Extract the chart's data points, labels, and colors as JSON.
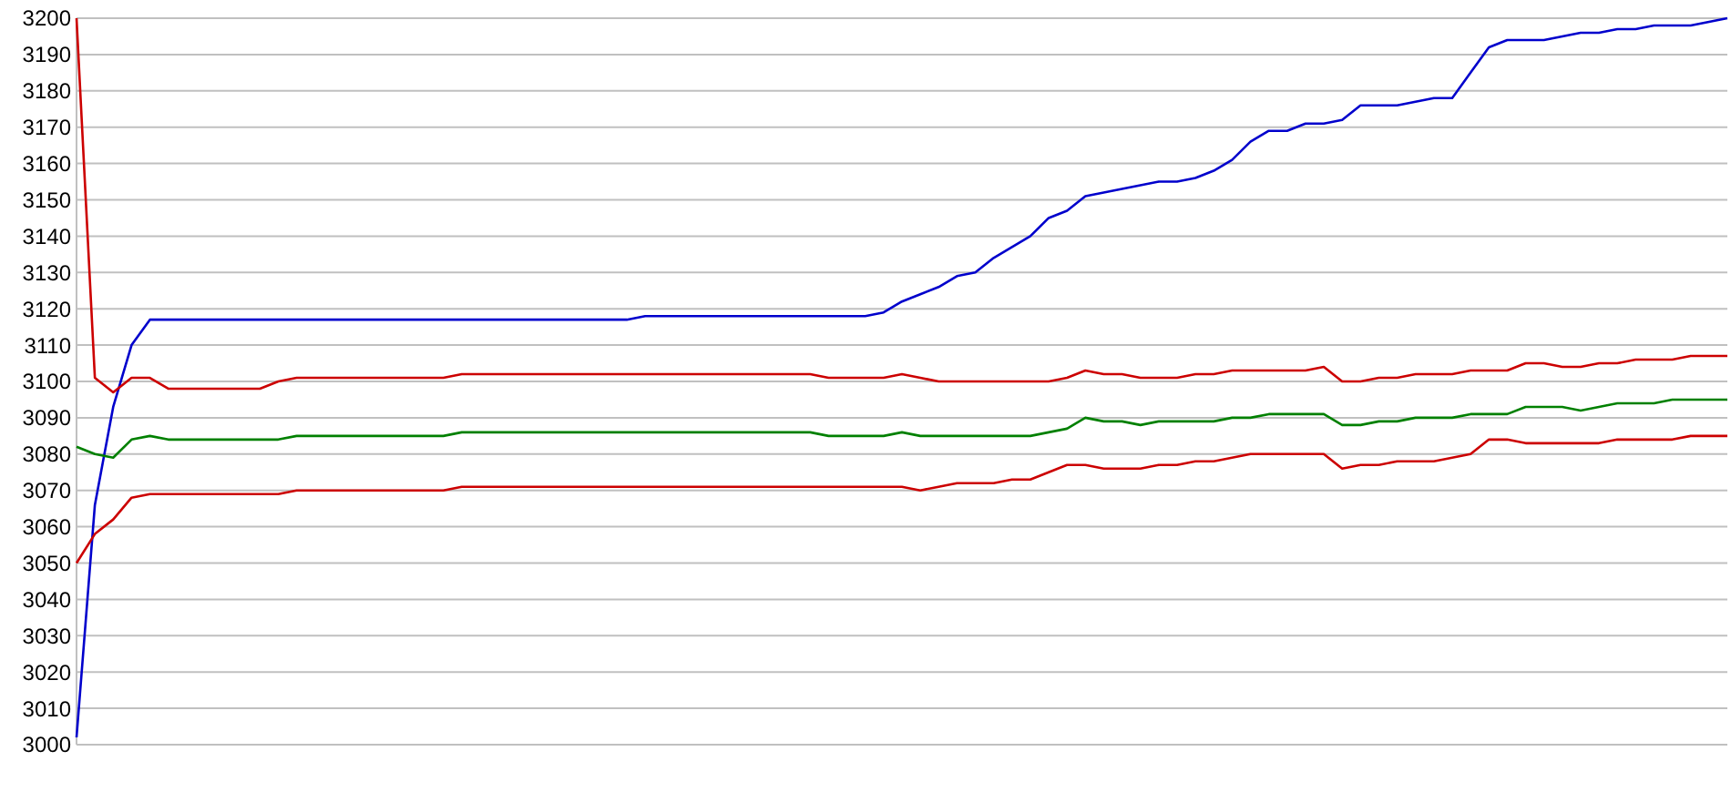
{
  "chart_data": {
    "type": "line",
    "categories": [
      null,
      null,
      null,
      null,
      null,
      null,
      null,
      null,
      null,
      null,
      null,
      null,
      null,
      null,
      null,
      null,
      null,
      null,
      null,
      null,
      null,
      null,
      null,
      null,
      null,
      null,
      null,
      null,
      null,
      null,
      null,
      null,
      null,
      null,
      null,
      null,
      null,
      null,
      null,
      null,
      null,
      null,
      null,
      null,
      null,
      null,
      null,
      null,
      null,
      null,
      null,
      null,
      null,
      null,
      null,
      null,
      null,
      null,
      null,
      null,
      null,
      null,
      null,
      null,
      null,
      null,
      null,
      null,
      null,
      null,
      null,
      null,
      null,
      null,
      null,
      null,
      null,
      null,
      null,
      null,
      null,
      null,
      null,
      null,
      null,
      null,
      null,
      null,
      null,
      null,
      null
    ],
    "ylim": [
      3000,
      3200
    ],
    "yticks": [
      3000,
      3010,
      3020,
      3030,
      3040,
      3050,
      3060,
      3070,
      3080,
      3090,
      3100,
      3110,
      3120,
      3130,
      3140,
      3150,
      3160,
      3170,
      3180,
      3190,
      3200
    ],
    "grid": "y",
    "tick_labels": "y",
    "marker": "none",
    "series": [
      {
        "color": "#0000cc",
        "values": [
          3002,
          3066,
          3093,
          3110,
          3117,
          3117,
          3117,
          3117,
          3117,
          3117,
          3117,
          3117,
          3117,
          3117,
          3117,
          3117,
          3117,
          3117,
          3117,
          3117,
          3117,
          3117,
          3117,
          3117,
          3117,
          3117,
          3117,
          3117,
          3117,
          3117,
          3117,
          3118,
          3118,
          3118,
          3118,
          3118,
          3118,
          3118,
          3118,
          3118,
          3118,
          3118,
          3118,
          3118,
          3119,
          3122,
          3124,
          3126,
          3129,
          3130,
          3134,
          3137,
          3140,
          3145,
          3147,
          3151,
          3152,
          3153,
          3154,
          3155,
          3155,
          3156,
          3158,
          3161,
          3166,
          3169,
          3169,
          3171,
          3171,
          3172,
          3176,
          3176,
          3176,
          3177,
          3178,
          3178,
          3185,
          3192,
          3194,
          3194,
          3194,
          3195,
          3196,
          3196,
          3197,
          3197,
          3198,
          3198,
          3198,
          3199,
          3200
        ]
      },
      {
        "color": "#cc0000",
        "values": [
          3200,
          3101,
          3097,
          3101,
          3101,
          3098,
          3098,
          3098,
          3098,
          3098,
          3098,
          3100,
          3101,
          3101,
          3101,
          3101,
          3101,
          3101,
          3101,
          3101,
          3101,
          3102,
          3102,
          3102,
          3102,
          3102,
          3102,
          3102,
          3102,
          3102,
          3102,
          3102,
          3102,
          3102,
          3102,
          3102,
          3102,
          3102,
          3102,
          3102,
          3102,
          3101,
          3101,
          3101,
          3101,
          3102,
          3101,
          3100,
          3100,
          3100,
          3100,
          3100,
          3100,
          3100,
          3101,
          3103,
          3102,
          3102,
          3101,
          3101,
          3101,
          3102,
          3102,
          3103,
          3103,
          3103,
          3103,
          3103,
          3104,
          3100,
          3100,
          3101,
          3101,
          3102,
          3102,
          3102,
          3103,
          3103,
          3103,
          3105,
          3105,
          3104,
          3104,
          3105,
          3105,
          3106,
          3106,
          3106,
          3107,
          3107,
          3107
        ]
      },
      {
        "color": "#008000",
        "values": [
          3082,
          3080,
          3079,
          3084,
          3085,
          3084,
          3084,
          3084,
          3084,
          3084,
          3084,
          3084,
          3085,
          3085,
          3085,
          3085,
          3085,
          3085,
          3085,
          3085,
          3085,
          3086,
          3086,
          3086,
          3086,
          3086,
          3086,
          3086,
          3086,
          3086,
          3086,
          3086,
          3086,
          3086,
          3086,
          3086,
          3086,
          3086,
          3086,
          3086,
          3086,
          3085,
          3085,
          3085,
          3085,
          3086,
          3085,
          3085,
          3085,
          3085,
          3085,
          3085,
          3085,
          3086,
          3087,
          3090,
          3089,
          3089,
          3088,
          3089,
          3089,
          3089,
          3089,
          3090,
          3090,
          3091,
          3091,
          3091,
          3091,
          3088,
          3088,
          3089,
          3089,
          3090,
          3090,
          3090,
          3091,
          3091,
          3091,
          3093,
          3093,
          3093,
          3092,
          3093,
          3094,
          3094,
          3094,
          3095,
          3095,
          3095,
          3095
        ]
      },
      {
        "color": "#cc0000",
        "values": [
          3050,
          3058,
          3062,
          3068,
          3069,
          3069,
          3069,
          3069,
          3069,
          3069,
          3069,
          3069,
          3070,
          3070,
          3070,
          3070,
          3070,
          3070,
          3070,
          3070,
          3070,
          3071,
          3071,
          3071,
          3071,
          3071,
          3071,
          3071,
          3071,
          3071,
          3071,
          3071,
          3071,
          3071,
          3071,
          3071,
          3071,
          3071,
          3071,
          3071,
          3071,
          3071,
          3071,
          3071,
          3071,
          3071,
          3070,
          3071,
          3072,
          3072,
          3072,
          3073,
          3073,
          3075,
          3077,
          3077,
          3076,
          3076,
          3076,
          3077,
          3077,
          3078,
          3078,
          3079,
          3080,
          3080,
          3080,
          3080,
          3080,
          3076,
          3077,
          3077,
          3078,
          3078,
          3078,
          3079,
          3080,
          3084,
          3084,
          3083,
          3083,
          3083,
          3083,
          3083,
          3084,
          3084,
          3084,
          3084,
          3085,
          3085,
          3085
        ]
      }
    ]
  }
}
